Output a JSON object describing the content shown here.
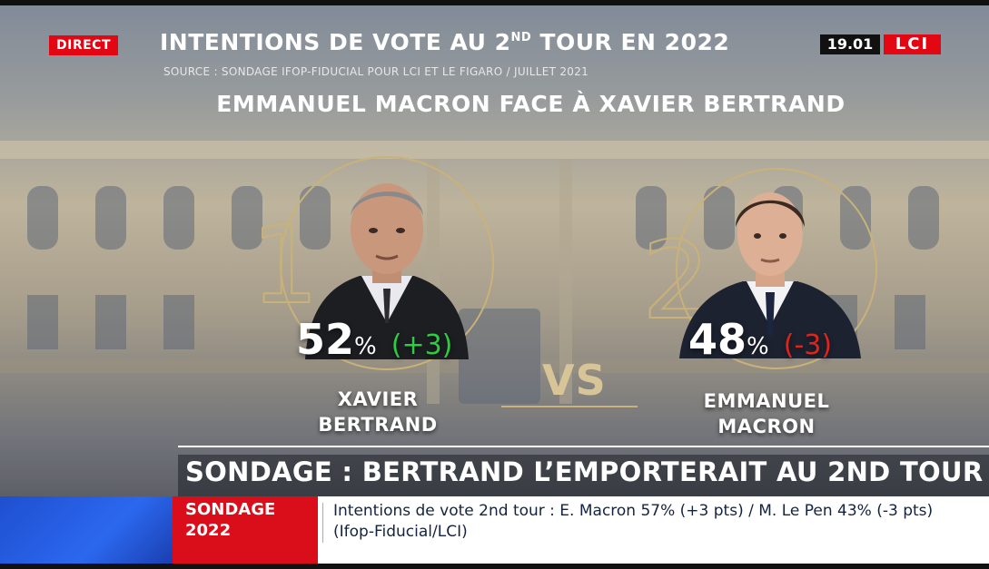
{
  "header": {
    "live_badge": "DIRECT",
    "title_main": "INTENTIONS DE VOTE AU 2",
    "title_sup": "ND",
    "title_end": " TOUR EN 2022",
    "source": "SOURCE : SONDAGE IFOP-FIDUCIAL POUR LCI ET LE FIGARO / JUILLET 2021",
    "clock": "19.01",
    "channel_logo": "LCI"
  },
  "matchup": {
    "title": "EMMANUEL MACRON FACE À XAVIER BERTRAND",
    "vs_label": "VS",
    "candidates": [
      {
        "rank": "1",
        "percent": "52",
        "unit": "%",
        "delta": "(+3)",
        "name_line1": "XAVIER",
        "name_line2": "BERTRAND",
        "delta_color": "#2ecc40"
      },
      {
        "rank": "2",
        "percent": "48",
        "unit": "%",
        "delta": "(-3)",
        "name_line1": "EMMANUEL",
        "name_line2": "MACRON",
        "delta_color": "#e0241b"
      }
    ]
  },
  "banner": {
    "text": "SONDAGE : BERTRAND L’EMPORTERAIT AU 2ND TOUR"
  },
  "ticker": {
    "label_line1": "SONDAGE",
    "label_line2": "2022",
    "text": "Intentions de vote 2nd tour :  E. Macron 57% (+3 pts) / M. Le Pen 43% (-3 pts)  (Ifop-Fiducial/LCI)"
  },
  "colors": {
    "accent_red": "#e30613",
    "gold": "#c9b27a",
    "ticker_blue": "#2b68ef"
  }
}
